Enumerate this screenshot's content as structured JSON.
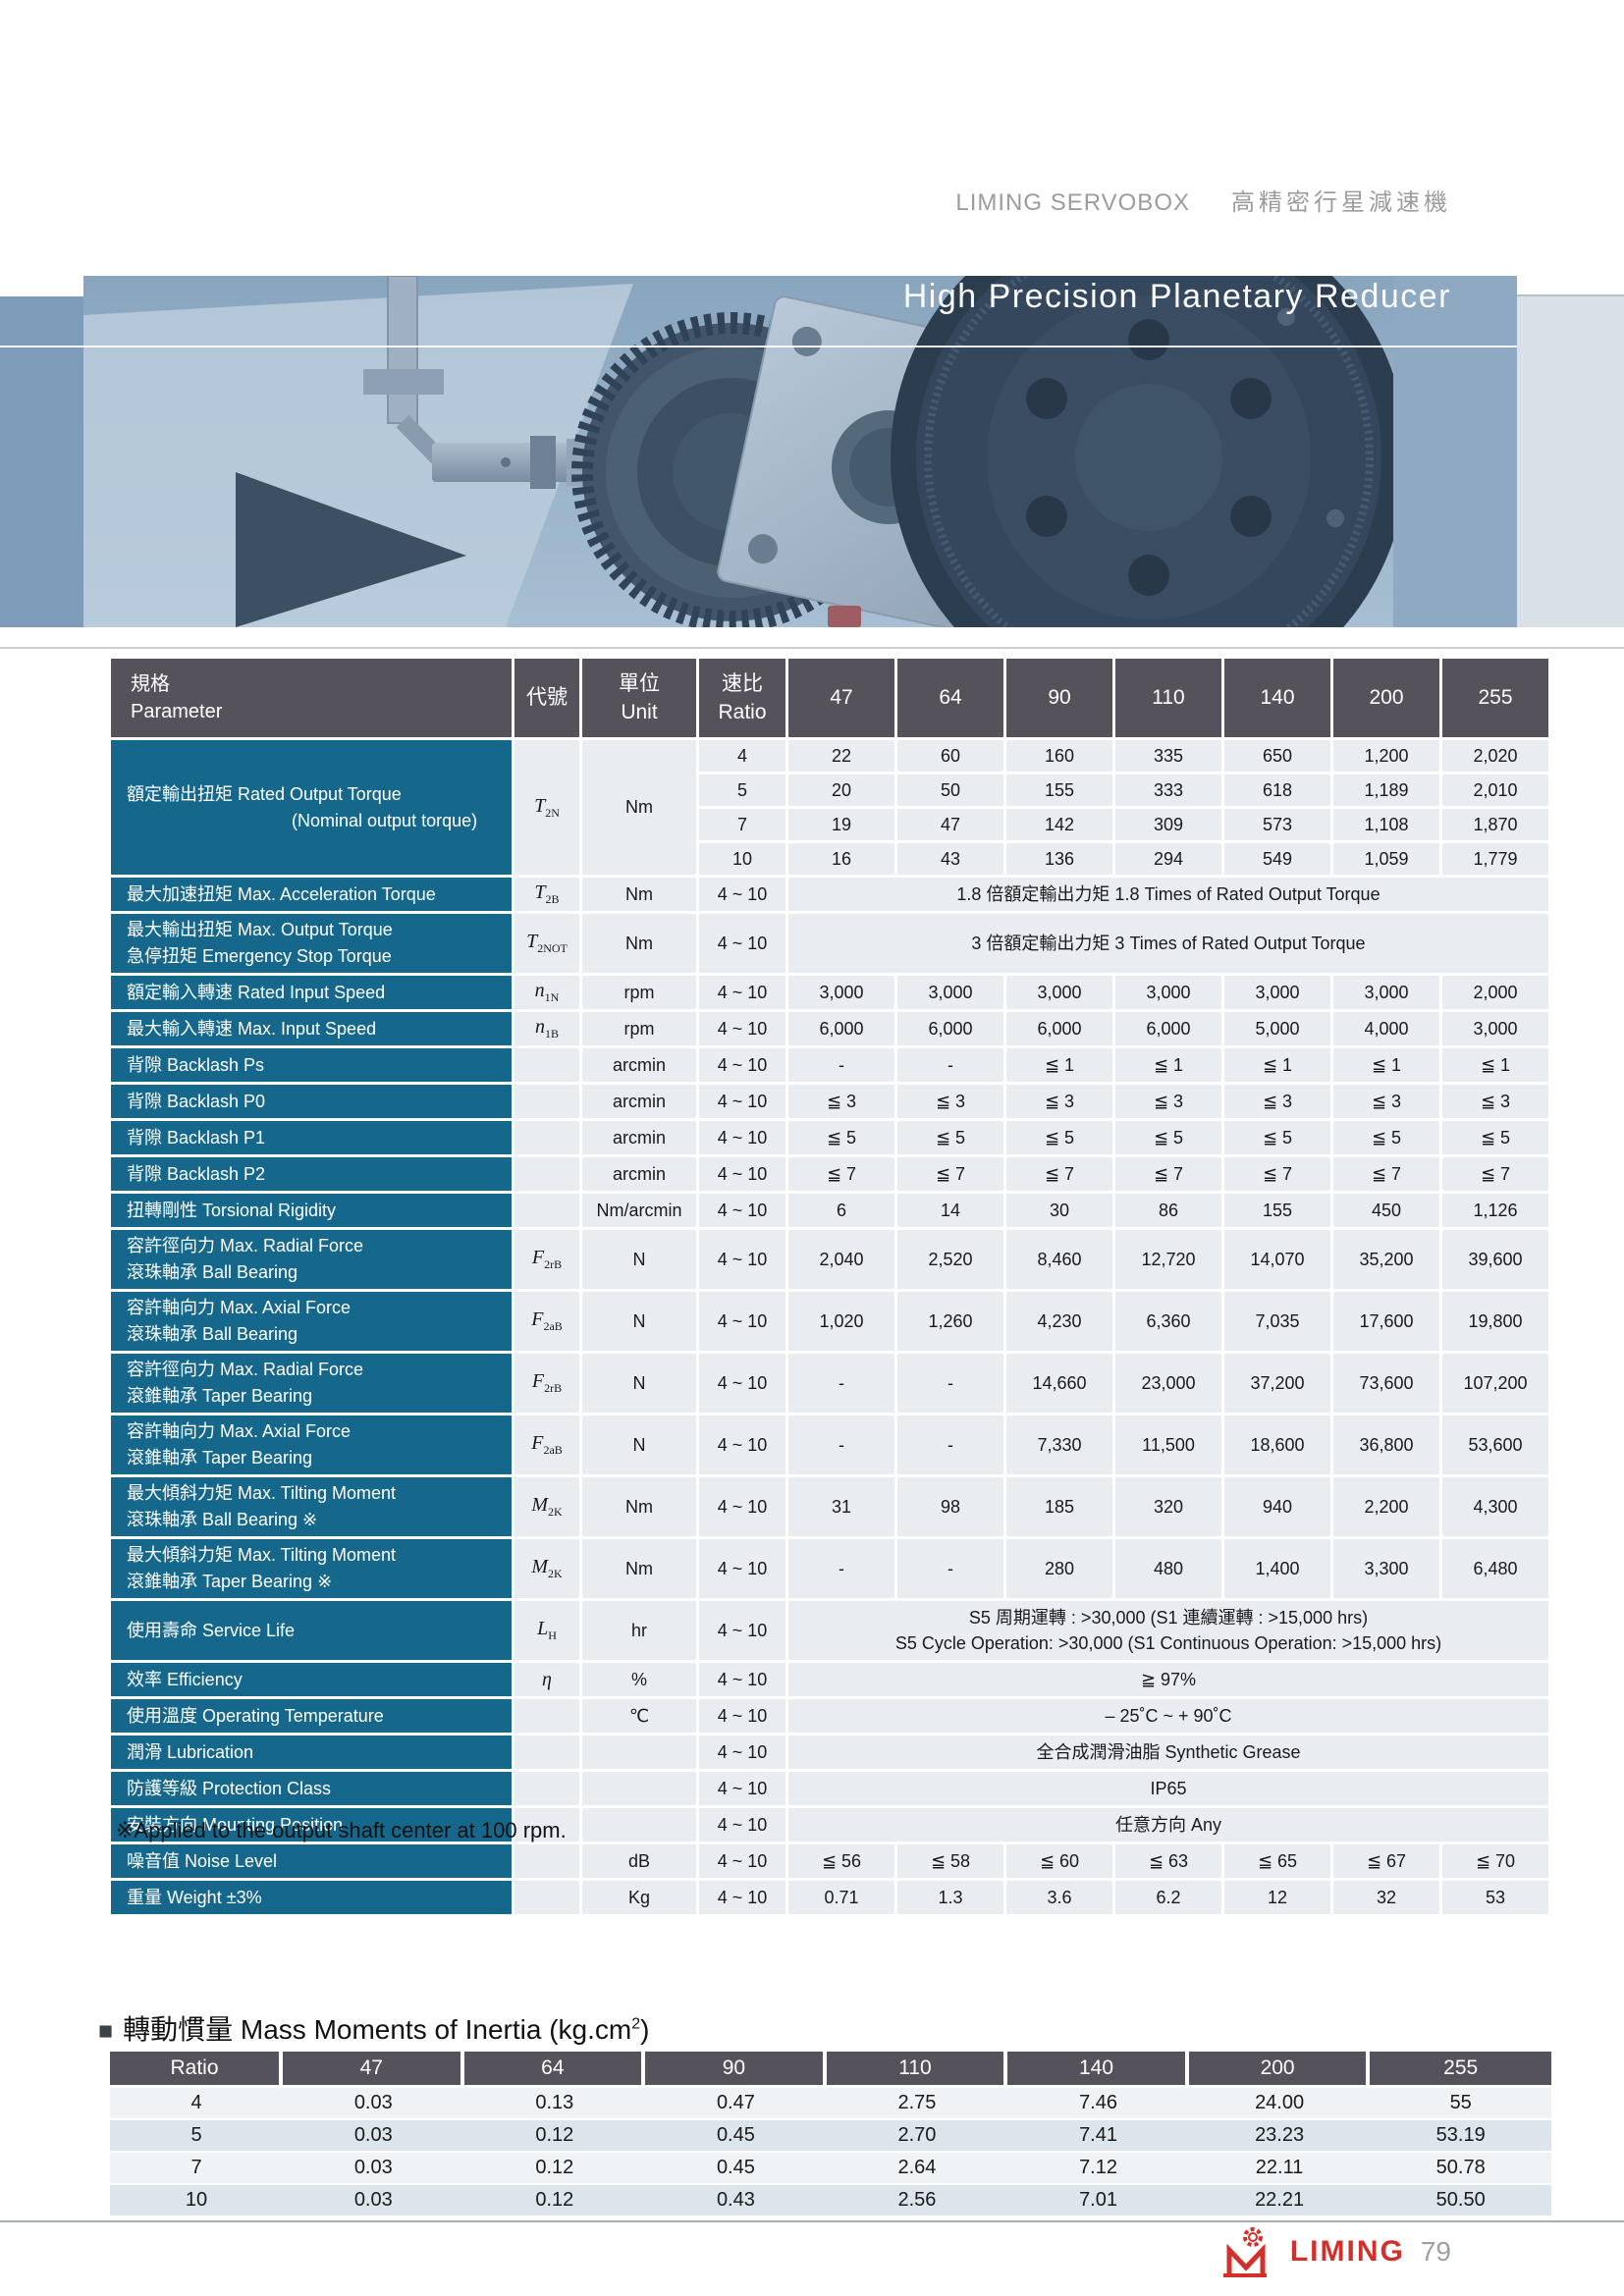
{
  "page": {
    "header_brand": "LIMING SERVOBOX",
    "header_subtitle": "高精密行星減速機",
    "hero_title": "High Precision Planetary Reducer",
    "footnote": "※Applied to the output shaft center at 100 rpm.",
    "footer_brand": "LIMING",
    "page_number": "79"
  },
  "colors": {
    "table_header_bg": "#56525C",
    "label_bg": "#15688B",
    "cell_bg": "#E9EDF2",
    "stripe_light": "#F0F3F6",
    "stripe_dark": "#DCE4EC",
    "brand_red": "#D2312B"
  },
  "spec_table": {
    "header": {
      "parameter": [
        "規格",
        "Parameter"
      ],
      "symbol": "代號",
      "unit": [
        "單位",
        "Unit"
      ],
      "ratio": [
        "速比",
        "Ratio"
      ],
      "models": [
        "47",
        "64",
        "90",
        "110",
        "140",
        "200",
        "255"
      ]
    },
    "rows": [
      {
        "label": [
          "額定輸出扭矩 Rated Output Torque",
          "(Nominal output torque)"
        ],
        "sym": [
          "T",
          "2N"
        ],
        "unit": "Nm",
        "subrows": [
          [
            "4",
            "22",
            "60",
            "160",
            "335",
            "650",
            "1,200",
            "2,020"
          ],
          [
            "5",
            "20",
            "50",
            "155",
            "333",
            "618",
            "1,189",
            "2,010"
          ],
          [
            "7",
            "19",
            "47",
            "142",
            "309",
            "573",
            "1,108",
            "1,870"
          ],
          [
            "10",
            "16",
            "43",
            "136",
            "294",
            "549",
            "1,059",
            "1,779"
          ]
        ]
      },
      {
        "label": [
          "最大加速扭矩 Max. Acceleration Torque"
        ],
        "sym": [
          "T",
          "2B"
        ],
        "unit": "Nm",
        "ratio": "4 ~ 10",
        "span": [
          "1.8 倍額定輸出力矩  1.8 Times of Rated Output Torque"
        ]
      },
      {
        "label": [
          "最大輸出扭矩  Max. Output Torque",
          "急停扭矩  Emergency Stop Torque"
        ],
        "sym": [
          "T",
          "2NOT"
        ],
        "unit": "Nm",
        "ratio": "4 ~ 10",
        "span": [
          "3 倍額定輸出力矩  3 Times of Rated Output Torque"
        ]
      },
      {
        "label": [
          "額定輸入轉速  Rated Input Speed"
        ],
        "sym": [
          "n",
          "1N"
        ],
        "unit": "rpm",
        "ratio": "4 ~ 10",
        "values": [
          "3,000",
          "3,000",
          "3,000",
          "3,000",
          "3,000",
          "3,000",
          "2,000"
        ]
      },
      {
        "label": [
          "最大輸入轉速  Max. Input Speed"
        ],
        "sym": [
          "n",
          "1B"
        ],
        "unit": "rpm",
        "ratio": "4 ~ 10",
        "values": [
          "6,000",
          "6,000",
          "6,000",
          "6,000",
          "5,000",
          "4,000",
          "3,000"
        ]
      },
      {
        "label": [
          "背隙  Backlash Ps"
        ],
        "unit": "arcmin",
        "ratio": "4 ~ 10",
        "values": [
          "-",
          "-",
          "≦ 1",
          "≦ 1",
          "≦ 1",
          "≦ 1",
          "≦ 1"
        ]
      },
      {
        "label": [
          "背隙  Backlash P0"
        ],
        "unit": "arcmin",
        "ratio": "4 ~ 10",
        "values": [
          "≦ 3",
          "≦ 3",
          "≦ 3",
          "≦ 3",
          "≦ 3",
          "≦ 3",
          "≦ 3"
        ]
      },
      {
        "label": [
          "背隙  Backlash P1"
        ],
        "unit": "arcmin",
        "ratio": "4 ~ 10",
        "values": [
          "≦ 5",
          "≦ 5",
          "≦ 5",
          "≦ 5",
          "≦ 5",
          "≦ 5",
          "≦ 5"
        ]
      },
      {
        "label": [
          "背隙  Backlash P2"
        ],
        "unit": "arcmin",
        "ratio": "4 ~ 10",
        "values": [
          "≦ 7",
          "≦ 7",
          "≦ 7",
          "≦ 7",
          "≦ 7",
          "≦ 7",
          "≦ 7"
        ]
      },
      {
        "label": [
          "扭轉剛性  Torsional Rigidity"
        ],
        "unit": "Nm/arcmin",
        "ratio": "4 ~ 10",
        "values": [
          "6",
          "14",
          "30",
          "86",
          "155",
          "450",
          "1,126"
        ]
      },
      {
        "label": [
          "容許徑向力  Max. Radial Force",
          "滾珠軸承  Ball Bearing"
        ],
        "sym": [
          "F",
          "2rB"
        ],
        "unit": "N",
        "ratio": "4 ~ 10",
        "values": [
          "2,040",
          "2,520",
          "8,460",
          "12,720",
          "14,070",
          "35,200",
          "39,600"
        ]
      },
      {
        "label": [
          "容許軸向力  Max. Axial Force",
          "滾珠軸承  Ball Bearing"
        ],
        "sym": [
          "F",
          "2aB"
        ],
        "unit": "N",
        "ratio": "4 ~ 10",
        "values": [
          "1,020",
          "1,260",
          "4,230",
          "6,360",
          "7,035",
          "17,600",
          "19,800"
        ]
      },
      {
        "label": [
          "容許徑向力  Max. Radial Force",
          "滾錐軸承  Taper Bearing"
        ],
        "sym": [
          "F",
          "2rB"
        ],
        "unit": "N",
        "ratio": "4 ~ 10",
        "values": [
          "-",
          "-",
          "14,660",
          "23,000",
          "37,200",
          "73,600",
          "107,200"
        ]
      },
      {
        "label": [
          "容許軸向力  Max. Axial Force",
          "滾錐軸承  Taper Bearing"
        ],
        "sym": [
          "F",
          "2aB"
        ],
        "unit": "N",
        "ratio": "4 ~ 10",
        "values": [
          "-",
          "-",
          "7,330",
          "11,500",
          "18,600",
          "36,800",
          "53,600"
        ]
      },
      {
        "label": [
          "最大傾斜力矩  Max. Tilting Moment",
          "滾珠軸承  Ball Bearing  ※"
        ],
        "sym": [
          "M",
          "2K"
        ],
        "unit": "Nm",
        "ratio": "4 ~ 10",
        "values": [
          "31",
          "98",
          "185",
          "320",
          "940",
          "2,200",
          "4,300"
        ]
      },
      {
        "label": [
          "最大傾斜力矩  Max. Tilting Moment",
          "滾錐軸承  Taper Bearing  ※"
        ],
        "sym": [
          "M",
          "2K"
        ],
        "unit": "Nm",
        "ratio": "4 ~ 10",
        "values": [
          "-",
          "-",
          "280",
          "480",
          "1,400",
          "3,300",
          "6,480"
        ]
      },
      {
        "label": [
          "使用壽命  Service Life"
        ],
        "sym": [
          "L",
          "H"
        ],
        "unit": "hr",
        "ratio": "4 ~ 10",
        "span": [
          "S5 周期運轉 : >30,000 (S1 連續運轉 : >15,000 hrs)",
          "S5 Cycle Operation: >30,000 (S1 Continuous Operation: >15,000 hrs)"
        ]
      },
      {
        "label": [
          "效率  Efficiency"
        ],
        "sym": [
          "η",
          ""
        ],
        "unit": "%",
        "ratio": "4 ~ 10",
        "span": [
          "≧ 97%"
        ]
      },
      {
        "label": [
          "使用溫度  Operating Temperature"
        ],
        "unit": "℃",
        "ratio": "4 ~ 10",
        "span": [
          "– 25˚C ~ + 90˚C"
        ]
      },
      {
        "label": [
          "潤滑  Lubrication"
        ],
        "unit": "",
        "ratio": "4 ~ 10",
        "span": [
          "全合成潤滑油脂  Synthetic Grease"
        ]
      },
      {
        "label": [
          "防護等級  Protection Class"
        ],
        "unit": "",
        "ratio": "4 ~ 10",
        "span": [
          "IP65"
        ]
      },
      {
        "label": [
          "安裝方向  Mounting Position"
        ],
        "unit": "",
        "ratio": "4 ~ 10",
        "span": [
          "任意方向  Any"
        ]
      },
      {
        "label": [
          "噪音值  Noise Level"
        ],
        "unit": "dB",
        "ratio": "4 ~ 10",
        "values": [
          "≦ 56",
          "≦ 58",
          "≦ 60",
          "≦ 63",
          "≦ 65",
          "≦ 67",
          "≦ 70"
        ]
      },
      {
        "label": [
          "重量  Weight  ±3%"
        ],
        "unit": "Kg",
        "ratio": "4 ~ 10",
        "values": [
          "0.71",
          "1.3",
          "3.6",
          "6.2",
          "12",
          "32",
          "53"
        ]
      }
    ]
  },
  "inertia_table": {
    "title_bullet": "■",
    "title_text": "轉動慣量 Mass Moments of Inertia (kg.cm",
    "title_sup": "2",
    "title_suffix": ")",
    "header": [
      "Ratio",
      "47",
      "64",
      "90",
      "110",
      "140",
      "200",
      "255"
    ],
    "rows": [
      [
        "4",
        "0.03",
        "0.13",
        "0.47",
        "2.75",
        "7.46",
        "24.00",
        "55"
      ],
      [
        "5",
        "0.03",
        "0.12",
        "0.45",
        "2.70",
        "7.41",
        "23.23",
        "53.19"
      ],
      [
        "7",
        "0.03",
        "0.12",
        "0.45",
        "2.64",
        "7.12",
        "22.11",
        "50.78"
      ],
      [
        "10",
        "0.03",
        "0.12",
        "0.43",
        "2.56",
        "7.01",
        "22.21",
        "50.50"
      ]
    ]
  }
}
